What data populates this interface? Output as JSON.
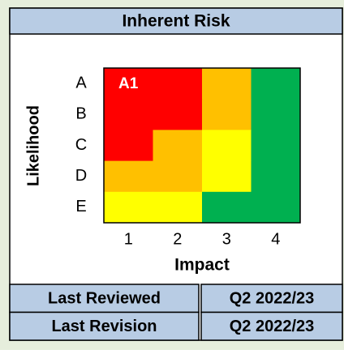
{
  "header": {
    "title": "Inherent Risk"
  },
  "matrix": {
    "y_label": "Likelihood",
    "x_label": "Impact",
    "rows": [
      "A",
      "B",
      "C",
      "D",
      "E"
    ],
    "columns": [
      "1",
      "2",
      "3",
      "4"
    ],
    "colors": [
      [
        "#ff0000",
        "#ff0000",
        "#ffc000",
        "#00b050"
      ],
      [
        "#ff0000",
        "#ff0000",
        "#ffc000",
        "#00b050"
      ],
      [
        "#ff0000",
        "#ffc000",
        "#ffff00",
        "#00b050"
      ],
      [
        "#ffc000",
        "#ffc000",
        "#ffff00",
        "#00b050"
      ],
      [
        "#ffff00",
        "#ffff00",
        "#00b050",
        "#00b050"
      ]
    ],
    "marker": "A1"
  },
  "table": {
    "rows": [
      [
        "Last Reviewed",
        "Q2 2022/23"
      ],
      [
        "Last Revision",
        "Q2 2022/23"
      ]
    ]
  }
}
